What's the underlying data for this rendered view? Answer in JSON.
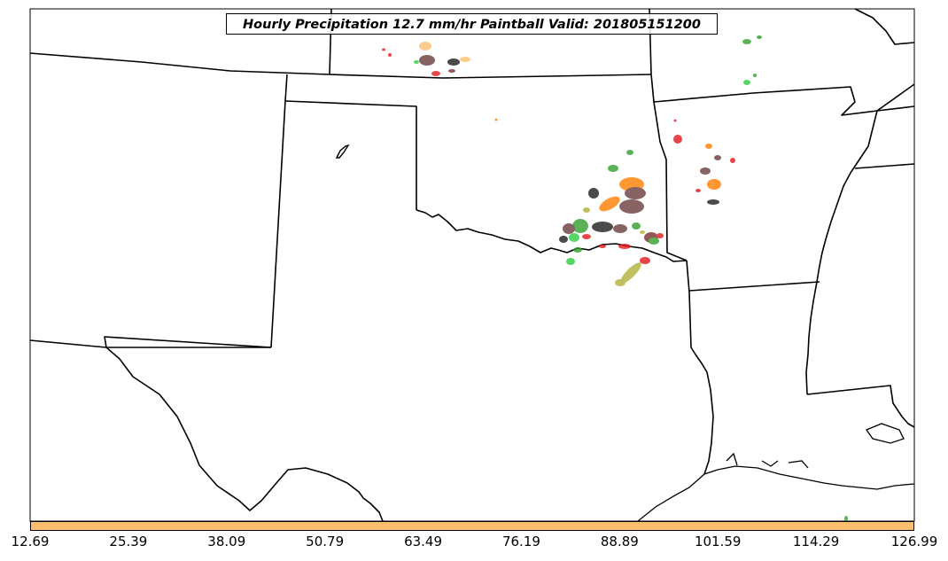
{
  "title": "Hourly Precipitation 12.7 mm/hr Paintball Valid: 201805151200",
  "colorbar": {
    "color": "#fdbf6f",
    "ticks": [
      "12.69",
      "25.39",
      "38.09",
      "50.79",
      "63.49",
      "76.19",
      "88.89",
      "101.59",
      "114.29",
      "126.99"
    ]
  },
  "member_colors": [
    "#e31a1c",
    "#ff7f00",
    "#33a02c",
    "#6a3d3d",
    "#fdbf6f",
    "#b2b13a",
    "#1e1e1e",
    "#2ecc40",
    "#7a2f2f"
  ],
  "states_visible": [
    "Texas",
    "Oklahoma",
    "Kansas",
    "Colorado",
    "New Mexico",
    "Arkansas",
    "Louisiana",
    "Missouri",
    "Mississippi"
  ]
}
